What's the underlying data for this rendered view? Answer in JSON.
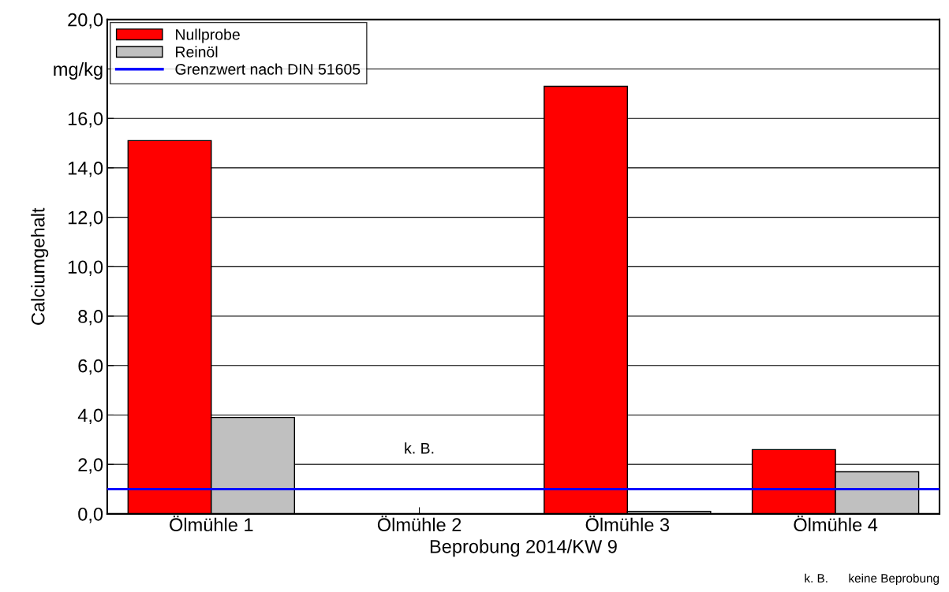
{
  "chart_data": {
    "type": "bar",
    "xlabel": "Beprobung 2014/KW 9",
    "ylabel": "Calciumgehalt",
    "categories": [
      "Ölmühle 1",
      "Ölmühle 2",
      "Ölmühle 3",
      "Ölmühle 4"
    ],
    "series": [
      {
        "name": "Nullprobe",
        "color": "#ff0000",
        "values": [
          15.1,
          null,
          17.3,
          2.6
        ]
      },
      {
        "name": "Reinöl",
        "color": "#c0c0c0",
        "values": [
          3.9,
          null,
          0.1,
          1.7
        ]
      }
    ],
    "ylim": [
      0,
      20
    ],
    "yticks": [
      {
        "value": 0,
        "label": "0,0"
      },
      {
        "value": 2,
        "label": "2,0"
      },
      {
        "value": 4,
        "label": "4,0"
      },
      {
        "value": 6,
        "label": "6,0"
      },
      {
        "value": 8,
        "label": "8,0"
      },
      {
        "value": 10,
        "label": "10,0"
      },
      {
        "value": 12,
        "label": "12,0"
      },
      {
        "value": 14,
        "label": "14,0"
      },
      {
        "value": 16,
        "label": "16,0"
      },
      {
        "value": 18,
        "label": "mg/kg"
      },
      {
        "value": 20,
        "label": "20,0"
      }
    ],
    "ref_lines": [
      {
        "axis": "y",
        "value": 1.0,
        "label": "Grenzwert nach DIN 51605",
        "color": "#0000ff"
      }
    ],
    "annotations": [
      "k. B.",
      "k. B.      keine Beprobung"
    ],
    "grid": "y",
    "legend": "top left"
  }
}
